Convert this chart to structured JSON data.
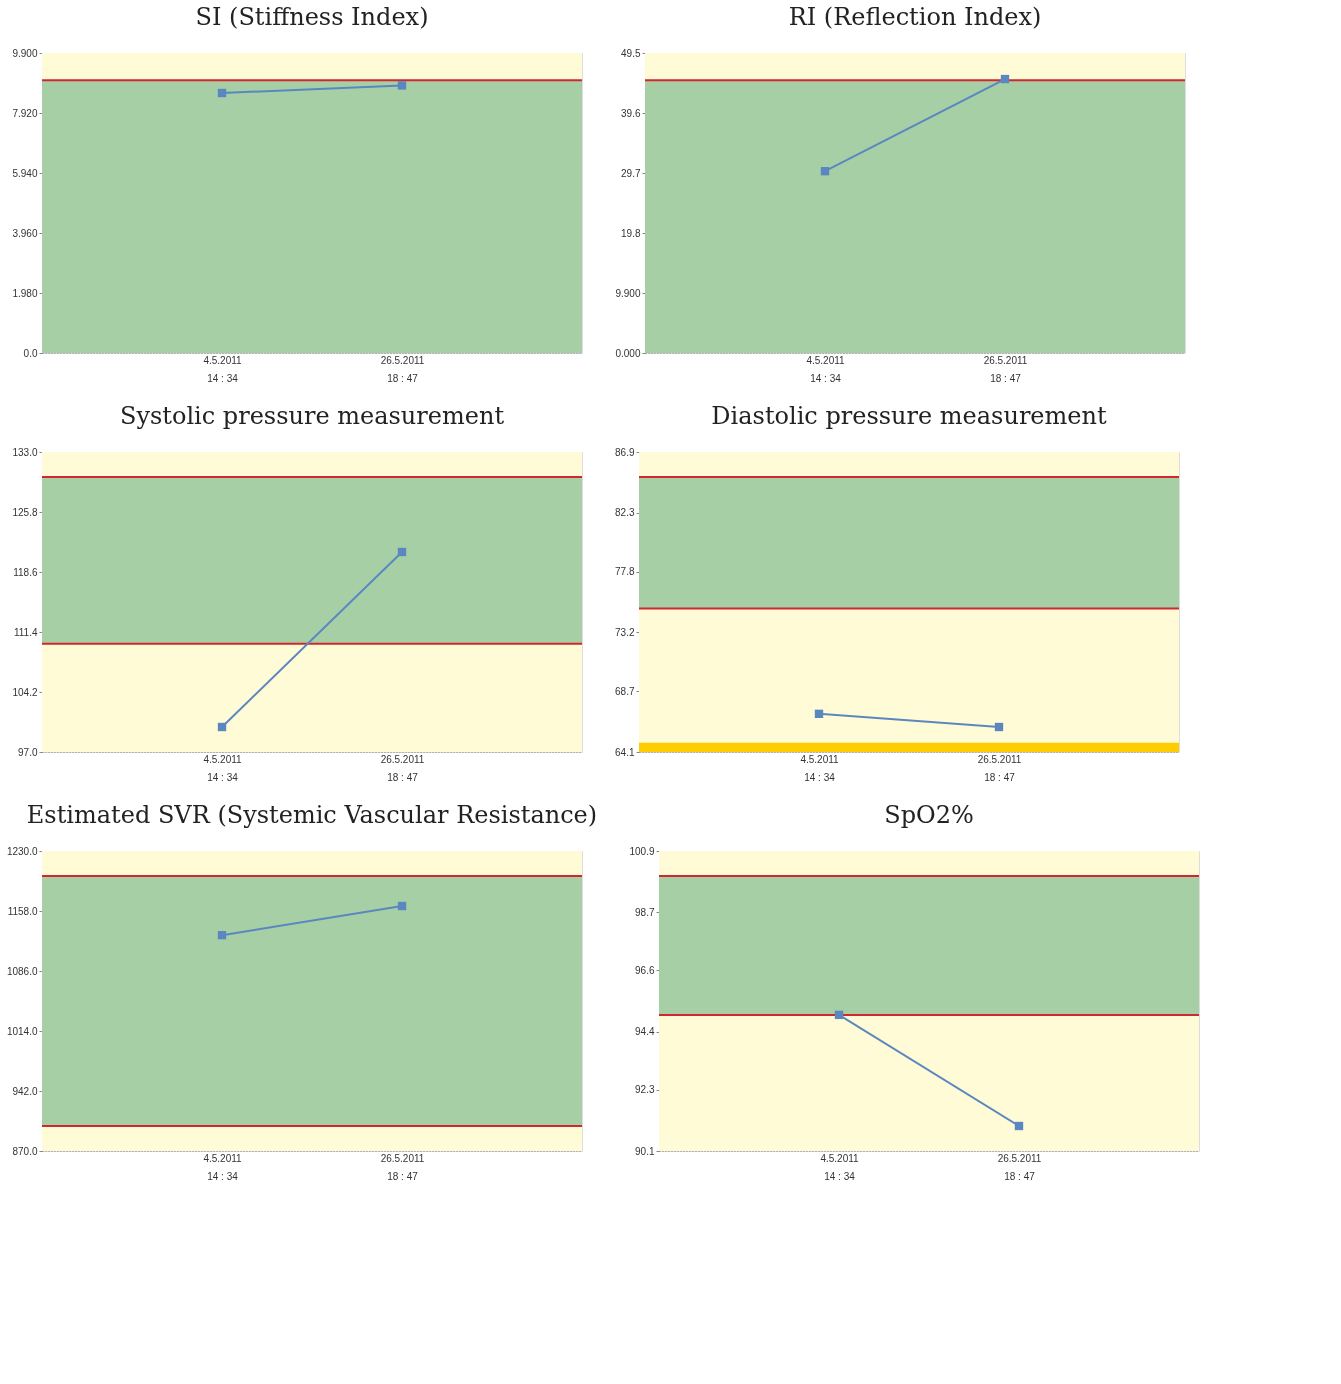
{
  "chart_data": [
    {
      "type": "line",
      "title": "SI (Stiffness Index)",
      "categories": [
        "4.5.2011\n14 : 34",
        "26.5.2011\n18 : 47"
      ],
      "series": [
        {
          "color": "#5b87c0",
          "values": [
            8.58,
            8.83
          ]
        }
      ],
      "ylim": [
        0,
        9.9
      ],
      "yticks": [
        {
          "value": 0,
          "label": "0.0"
        },
        {
          "value": 1.98,
          "label": "1.980"
        },
        {
          "value": 3.96,
          "label": "3.960"
        },
        {
          "value": 5.94,
          "label": "5.940"
        },
        {
          "value": 7.92,
          "label": "7.920"
        },
        {
          "value": 9.9,
          "label": "9.900"
        }
      ],
      "bands": [
        {
          "axis": "y",
          "from": 0,
          "to": 9.9,
          "color": "#fffbd6"
        },
        {
          "axis": "y",
          "from": 0,
          "to": 9.0,
          "color": "#a6cfa6"
        }
      ],
      "ref_lines": [
        {
          "axis": "y",
          "value": 9.0,
          "color": "#d0282e"
        }
      ],
      "marker": "square"
    },
    {
      "type": "line",
      "title": "RI (Reflection Index)",
      "categories": [
        "4.5.2011\n14 : 34",
        "26.5.2011\n18 : 47"
      ],
      "series": [
        {
          "color": "#5b87c0",
          "values": [
            30.0,
            45.2
          ]
        }
      ],
      "ylim": [
        0,
        49.5
      ],
      "yticks": [
        {
          "value": 0,
          "label": "0.000"
        },
        {
          "value": 9.9,
          "label": "9.900"
        },
        19.8,
        29.7,
        39.6,
        49.5
      ],
      "bands": [
        {
          "axis": "y",
          "from": 0,
          "to": 49.5,
          "color": "#fffbd6"
        },
        {
          "axis": "y",
          "from": 0,
          "to": 45.0,
          "color": "#a6cfa6"
        }
      ],
      "ref_lines": [
        {
          "axis": "y",
          "value": 45.0,
          "color": "#d0282e"
        }
      ],
      "marker": "square"
    },
    {
      "type": "line",
      "title": "Systolic pressure measurement",
      "categories": [
        "4.5.2011\n14 : 34",
        "26.5.2011\n18 : 47"
      ],
      "series": [
        {
          "color": "#5b87c0",
          "values": [
            100.0,
            121.0
          ]
        }
      ],
      "ylim": [
        97,
        133
      ],
      "yticks": [
        {
          "value": 97,
          "label": "97.0"
        },
        104.2,
        111.4,
        118.6,
        125.8,
        {
          "value": 133,
          "label": "133.0"
        }
      ],
      "bands": [
        {
          "axis": "y",
          "from": 97,
          "to": 133,
          "color": "#fffbd6"
        },
        {
          "axis": "y",
          "from": 110,
          "to": 130,
          "color": "#a6cfa6"
        }
      ],
      "ref_lines": [
        {
          "axis": "y",
          "value": 130,
          "color": "#d0282e"
        },
        {
          "axis": "y",
          "value": 110,
          "color": "#d0282e"
        }
      ],
      "marker": "square"
    },
    {
      "type": "line",
      "title": "Diastolic pressure measurement",
      "categories": [
        "4.5.2011\n14 : 34",
        "26.5.2011\n18 : 47"
      ],
      "series": [
        {
          "color": "#5b87c0",
          "values": [
            67.0,
            66.0
          ]
        }
      ],
      "ylim": [
        64.1,
        86.9
      ],
      "yticks": [
        64.1,
        68.7,
        73.2,
        77.8,
        82.3,
        86.9
      ],
      "bands": [
        {
          "axis": "y",
          "from": 64.1,
          "to": 86.9,
          "color": "#fffbd6"
        },
        {
          "axis": "y",
          "from": 75,
          "to": 85,
          "color": "#a6cfa6"
        },
        {
          "axis": "y",
          "from": 64.1,
          "to": 64.8,
          "color": "#ffcc00"
        }
      ],
      "ref_lines": [
        {
          "axis": "y",
          "value": 85,
          "color": "#d0282e"
        },
        {
          "axis": "y",
          "value": 75,
          "color": "#d0282e"
        }
      ],
      "marker": "square"
    },
    {
      "type": "line",
      "title": "Estimated SVR (Systemic Vascular Resistance)",
      "categories": [
        "4.5.2011\n14 : 34",
        "26.5.2011\n18 : 47"
      ],
      "series": [
        {
          "color": "#5b87c0",
          "values": [
            1129,
            1164
          ]
        }
      ],
      "ylim": [
        870,
        1230
      ],
      "yticks": [
        {
          "value": 870,
          "label": "870.0"
        },
        {
          "value": 942,
          "label": "942.0"
        },
        {
          "value": 1014,
          "label": "1014.0"
        },
        {
          "value": 1086,
          "label": "1086.0"
        },
        {
          "value": 1158,
          "label": "1158.0"
        },
        {
          "value": 1230,
          "label": "1230.0"
        }
      ],
      "bands": [
        {
          "axis": "y",
          "from": 870,
          "to": 1230,
          "color": "#fffbd6"
        },
        {
          "axis": "y",
          "from": 900,
          "to": 1200,
          "color": "#a6cfa6"
        }
      ],
      "ref_lines": [
        {
          "axis": "y",
          "value": 1200,
          "color": "#d0282e"
        },
        {
          "axis": "y",
          "value": 900,
          "color": "#d0282e"
        }
      ],
      "marker": "square"
    },
    {
      "type": "line",
      "title": "SpO2%",
      "categories": [
        "4.5.2011\n14 : 34",
        "26.5.2011\n18 : 47"
      ],
      "series": [
        {
          "color": "#5b87c0",
          "values": [
            95.0,
            91.0
          ]
        }
      ],
      "ylim": [
        90.1,
        100.9
      ],
      "yticks": [
        90.1,
        92.3,
        94.4,
        96.6,
        98.7,
        100.9
      ],
      "bands": [
        {
          "axis": "y",
          "from": 90.1,
          "to": 100.9,
          "color": "#fffbd6"
        },
        {
          "axis": "y",
          "from": 95,
          "to": 100,
          "color": "#a6cfa6"
        }
      ],
      "ref_lines": [
        {
          "axis": "y",
          "value": 100,
          "color": "#d0282e"
        },
        {
          "axis": "y",
          "value": 95,
          "color": "#d0282e"
        }
      ],
      "marker": "square"
    }
  ]
}
